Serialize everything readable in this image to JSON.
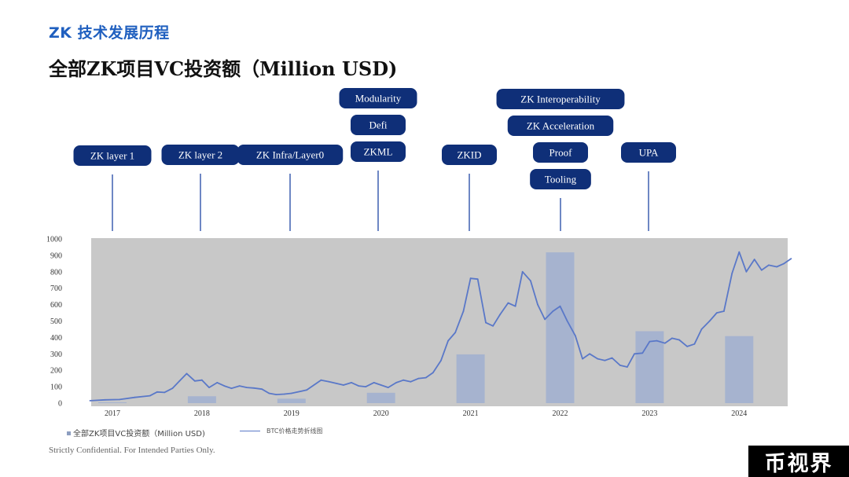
{
  "section_title": "ZK 技术发展历程",
  "main_title": "全部ZK项目VC投资额（Million USD)",
  "footer": "Strictly Confidential. For Intended Parties Only.",
  "watermark": "币视界",
  "colors": {
    "title_blue": "#1f5fbf",
    "pill_navy": "#0f2f78",
    "plot_bg": "#c8c8c8",
    "bar_fill": "#a6b3cf",
    "line_blue": "#5a78c8",
    "connector": "#3e5fb0"
  },
  "annotations": [
    {
      "labels": [
        "ZK layer 1"
      ]
    },
    {
      "labels": [
        "ZK layer 2"
      ]
    },
    {
      "labels": [
        "ZK Infra/Layer0"
      ]
    },
    {
      "labels": [
        "Modularity",
        "Defi",
        "ZKML"
      ]
    },
    {
      "labels": [
        "ZKID"
      ]
    },
    {
      "labels": [
        "ZK Interoperability",
        "ZK Acceleration",
        "Proof",
        "Tooling"
      ]
    },
    {
      "labels": [
        "UPA"
      ]
    }
  ],
  "chart_data": {
    "type": "bar",
    "title": "",
    "xlabel": "",
    "ylabel": "",
    "ylim": [
      0,
      1000
    ],
    "yticks": [
      0,
      100,
      200,
      300,
      400,
      500,
      600,
      700,
      800,
      900,
      1000
    ],
    "categories": [
      "2017",
      "2018",
      "2019",
      "2020",
      "2021",
      "2022",
      "2023",
      "2024"
    ],
    "grid": false,
    "legend": "bottom-left",
    "series": [
      {
        "name": "全部ZK项目VC投资额（Million USD)",
        "type": "bar",
        "values": [
          5,
          42,
          27,
          63,
          297,
          918,
          438,
          408
        ]
      },
      {
        "name": "BTC价格走势折线图",
        "type": "line",
        "x": [
          2016.75,
          2016.92,
          2017.08,
          2017.25,
          2017.42,
          2017.5,
          2017.58,
          2017.67,
          2017.75,
          2017.83,
          2017.92,
          2018.0,
          2018.08,
          2018.17,
          2018.25,
          2018.33,
          2018.42,
          2018.5,
          2018.58,
          2018.67,
          2018.75,
          2018.83,
          2018.92,
          2019.0,
          2019.17,
          2019.33,
          2019.42,
          2019.5,
          2019.58,
          2019.67,
          2019.75,
          2019.83,
          2019.92,
          2020.0,
          2020.08,
          2020.17,
          2020.25,
          2020.33,
          2020.42,
          2020.5,
          2020.58,
          2020.67,
          2020.75,
          2020.83,
          2020.92,
          2021.0,
          2021.08,
          2021.17,
          2021.25,
          2021.33,
          2021.42,
          2021.5,
          2021.58,
          2021.67,
          2021.75,
          2021.83,
          2021.92,
          2022.0,
          2022.08,
          2022.17,
          2022.25,
          2022.33,
          2022.42,
          2022.5,
          2022.58,
          2022.67,
          2022.75,
          2022.83,
          2022.92,
          2023.0,
          2023.08,
          2023.17,
          2023.25,
          2023.33,
          2023.42,
          2023.5,
          2023.58,
          2023.67,
          2023.75,
          2023.83,
          2023.92,
          2024.0,
          2024.08,
          2024.17,
          2024.25,
          2024.33,
          2024.42,
          2024.5,
          2024.58
        ],
        "values": [
          15,
          20,
          22,
          35,
          45,
          68,
          65,
          90,
          135,
          180,
          135,
          140,
          95,
          125,
          105,
          90,
          105,
          95,
          92,
          85,
          60,
          52,
          55,
          60,
          80,
          140,
          130,
          120,
          110,
          125,
          105,
          100,
          125,
          110,
          95,
          125,
          140,
          130,
          150,
          155,
          185,
          260,
          380,
          430,
          560,
          760,
          755,
          490,
          470,
          540,
          610,
          590,
          800,
          745,
          600,
          510,
          560,
          590,
          500,
          410,
          270,
          300,
          270,
          260,
          275,
          230,
          220,
          300,
          305,
          375,
          380,
          365,
          395,
          385,
          345,
          360,
          450,
          500,
          550,
          560,
          790,
          920,
          800,
          875,
          810,
          840,
          830,
          850,
          880
        ]
      }
    ]
  }
}
